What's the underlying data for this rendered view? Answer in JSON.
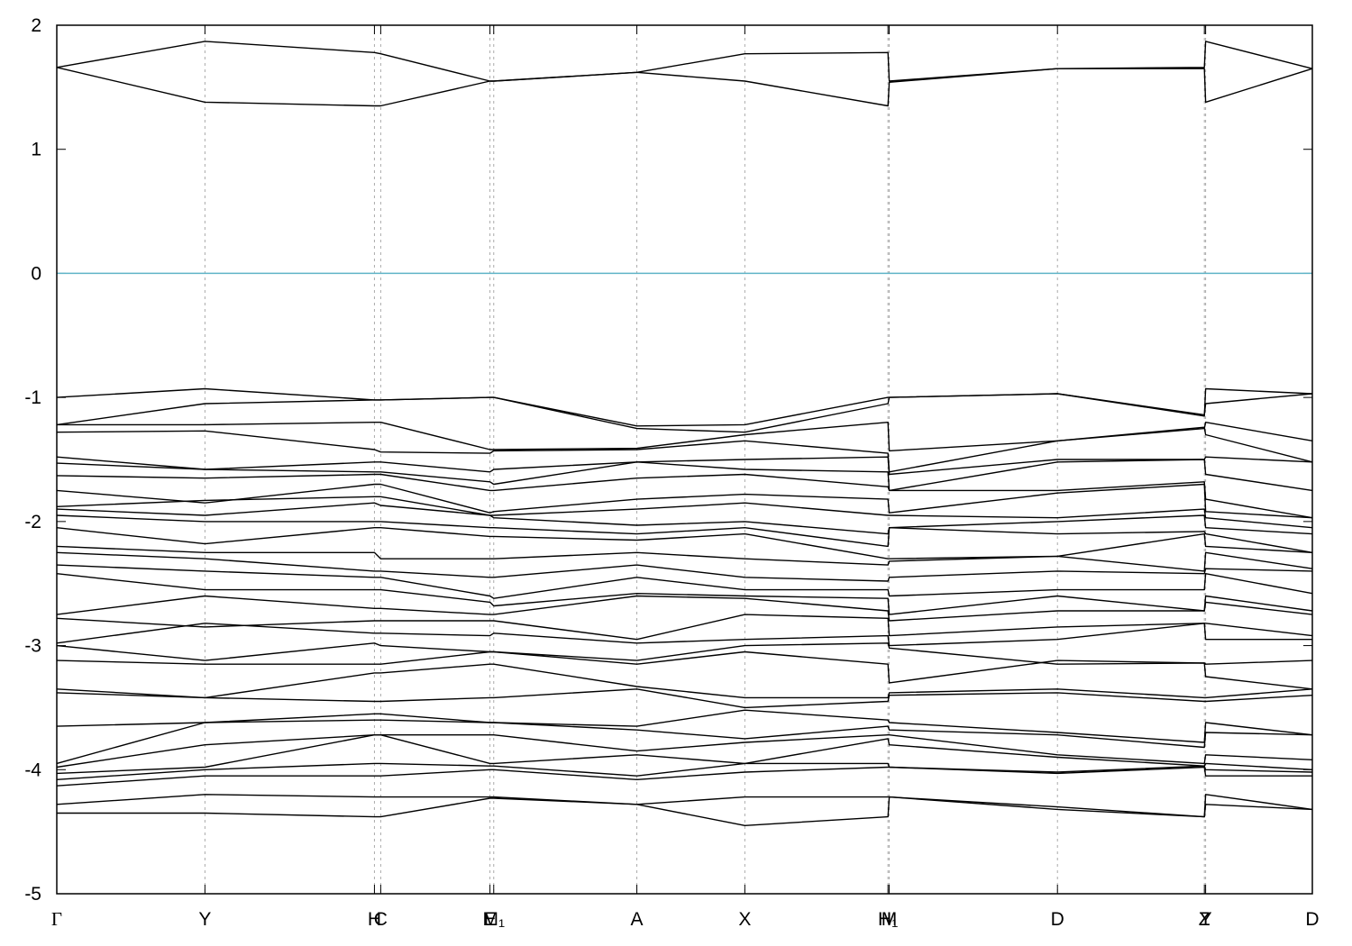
{
  "chart_data": {
    "type": "line",
    "color": "#000000",
    "reference_line": {
      "y": 0,
      "color": "#5fb4c8"
    },
    "xgrid": true,
    "xlim": [
      0,
      1
    ],
    "ylim": [
      -5,
      2
    ],
    "yticks": [
      -5,
      -4,
      -3,
      -2,
      -1,
      0,
      1,
      2
    ],
    "xticks": [
      {
        "value": 0,
        "label": "Γ"
      },
      {
        "value": 0.118,
        "label": "Y"
      },
      {
        "value": 0.253,
        "label": "H"
      },
      {
        "value": 0.258,
        "label": "C"
      },
      {
        "value": 0.345,
        "label": "E"
      },
      {
        "value": 0.348,
        "label": "M₁"
      },
      {
        "value": 0.462,
        "label": "A"
      },
      {
        "value": 0.548,
        "label": "X"
      },
      {
        "value": 0.662,
        "label": "H₁"
      },
      {
        "value": 0.663,
        "label": "M"
      },
      {
        "value": 0.797,
        "label": "D"
      },
      {
        "value": 0.914,
        "label": "Z"
      },
      {
        "value": 0.915,
        "label": "Y"
      },
      {
        "value": 1,
        "label": "D"
      }
    ],
    "x": [
      0,
      0.118,
      0.253,
      0.258,
      0.345,
      0.348,
      0.462,
      0.548,
      0.662,
      0.663,
      0.797,
      0.914,
      0.915,
      1
    ],
    "series": [
      {
        "values": [
          1.66,
          1.87,
          1.78,
          1.77,
          1.55,
          1.55,
          1.62,
          1.77,
          1.78,
          1.55,
          1.65,
          1.66,
          1.87,
          1.65
        ]
      },
      {
        "values": [
          1.66,
          1.38,
          1.35,
          1.35,
          1.55,
          1.55,
          1.62,
          1.55,
          1.35,
          1.54,
          1.65,
          1.65,
          1.38,
          1.65
        ]
      },
      {
        "values": [
          -1.0,
          -0.93,
          -1.02,
          -1.02,
          -1.0,
          -1.0,
          -1.23,
          -1.22,
          -1.0,
          -1.0,
          -0.97,
          -1.15,
          -0.93,
          -0.97
        ]
      },
      {
        "values": [
          -1.22,
          -1.05,
          -1.02,
          -1.02,
          -1.0,
          -1.0,
          -1.25,
          -1.28,
          -1.05,
          -1.0,
          -0.97,
          -1.14,
          -1.05,
          -0.97
        ]
      },
      {
        "values": [
          -1.22,
          -1.22,
          -1.2,
          -1.2,
          -1.42,
          -1.42,
          -1.41,
          -1.3,
          -1.2,
          -1.43,
          -1.35,
          -1.25,
          -1.2,
          -1.35
        ]
      },
      {
        "values": [
          -1.28,
          -1.27,
          -1.42,
          -1.44,
          -1.45,
          -1.43,
          -1.42,
          -1.35,
          -1.45,
          -1.6,
          -1.35,
          -1.24,
          -1.3,
          -1.52
        ]
      },
      {
        "values": [
          -1.48,
          -1.58,
          -1.52,
          -1.52,
          -1.6,
          -1.58,
          -1.52,
          -1.5,
          -1.48,
          -1.62,
          -1.5,
          -1.5,
          -1.48,
          -1.52
        ]
      },
      {
        "values": [
          -1.53,
          -1.58,
          -1.6,
          -1.6,
          -1.68,
          -1.7,
          -1.52,
          -1.58,
          -1.6,
          -1.75,
          -1.52,
          -1.5,
          -1.62,
          -1.75
        ]
      },
      {
        "values": [
          -1.63,
          -1.65,
          -1.62,
          -1.62,
          -1.75,
          -1.75,
          -1.65,
          -1.62,
          -1.72,
          -1.75,
          -1.75,
          -1.68,
          -1.82,
          -1.97
        ]
      },
      {
        "values": [
          -1.75,
          -1.85,
          -1.7,
          -1.7,
          -1.93,
          -1.92,
          -1.82,
          -1.78,
          -1.82,
          -1.93,
          -1.77,
          -1.7,
          -1.92,
          -1.97
        ]
      },
      {
        "values": [
          -1.88,
          -1.83,
          -1.8,
          -1.8,
          -1.95,
          -1.95,
          -1.9,
          -1.85,
          -1.95,
          -1.95,
          -1.97,
          -1.9,
          -1.97,
          -2.05
        ]
      },
      {
        "values": [
          -1.9,
          -1.95,
          -1.85,
          -1.87,
          -1.95,
          -1.97,
          -2.03,
          -2.0,
          -2.1,
          -2.05,
          -2.0,
          -1.95,
          -2.05,
          -2.1
        ]
      },
      {
        "values": [
          -1.95,
          -2.0,
          -2.0,
          -2.0,
          -2.05,
          -2.05,
          -2.1,
          -2.05,
          -2.2,
          -2.05,
          -2.1,
          -2.08,
          -2.1,
          -2.25
        ]
      },
      {
        "values": [
          -2.05,
          -2.18,
          -2.05,
          -2.05,
          -2.12,
          -2.12,
          -2.15,
          -2.1,
          -2.3,
          -2.3,
          -2.28,
          -2.1,
          -2.2,
          -2.25
        ]
      },
      {
        "values": [
          -2.2,
          -2.25,
          -2.25,
          -2.3,
          -2.3,
          -2.3,
          -2.25,
          -2.3,
          -2.35,
          -2.32,
          -2.28,
          -2.4,
          -2.25,
          -2.38
        ]
      },
      {
        "values": [
          -2.25,
          -2.3,
          -2.4,
          -2.4,
          -2.45,
          -2.45,
          -2.35,
          -2.45,
          -2.48,
          -2.45,
          -2.4,
          -2.42,
          -2.38,
          -2.4
        ]
      },
      {
        "values": [
          -2.35,
          -2.4,
          -2.45,
          -2.45,
          -2.6,
          -2.62,
          -2.45,
          -2.55,
          -2.55,
          -2.6,
          -2.55,
          -2.55,
          -2.42,
          -2.58
        ]
      },
      {
        "values": [
          -2.42,
          -2.55,
          -2.55,
          -2.55,
          -2.65,
          -2.68,
          -2.58,
          -2.6,
          -2.62,
          -2.75,
          -2.6,
          -2.72,
          -2.6,
          -2.72
        ]
      },
      {
        "values": [
          -2.75,
          -2.6,
          -2.7,
          -2.7,
          -2.75,
          -2.75,
          -2.6,
          -2.62,
          -2.72,
          -2.8,
          -2.72,
          -2.72,
          -2.65,
          -2.75
        ]
      },
      {
        "values": [
          -2.78,
          -2.85,
          -2.8,
          -2.8,
          -2.8,
          -2.8,
          -2.95,
          -2.75,
          -2.78,
          -2.92,
          -2.85,
          -2.82,
          -2.82,
          -2.92
        ]
      },
      {
        "values": [
          -2.98,
          -2.82,
          -2.9,
          -2.9,
          -2.92,
          -2.9,
          -2.98,
          -2.95,
          -2.92,
          -3.0,
          -2.95,
          -2.82,
          -2.95,
          -2.95
        ]
      },
      {
        "values": [
          -3.0,
          -3.12,
          -2.98,
          -3.0,
          -3.05,
          -3.05,
          -3.12,
          -3.0,
          -2.98,
          -3.02,
          -3.15,
          -3.14,
          -3.15,
          -3.12
        ]
      },
      {
        "values": [
          -3.12,
          -3.15,
          -3.15,
          -3.15,
          -3.05,
          -3.05,
          -3.15,
          -3.05,
          -3.15,
          -3.3,
          -3.12,
          -3.14,
          -3.25,
          -3.35
        ]
      },
      {
        "values": [
          -3.35,
          -3.42,
          -3.22,
          -3.22,
          -3.15,
          -3.15,
          -3.33,
          -3.42,
          -3.42,
          -3.38,
          -3.35,
          -3.42,
          -3.42,
          -3.35
        ]
      },
      {
        "values": [
          -3.38,
          -3.42,
          -3.45,
          -3.45,
          -3.42,
          -3.42,
          -3.35,
          -3.5,
          -3.45,
          -3.4,
          -3.38,
          -3.45,
          -3.45,
          -3.4
        ]
      },
      {
        "values": [
          -3.65,
          -3.62,
          -3.6,
          -3.6,
          -3.62,
          -3.62,
          -3.65,
          -3.52,
          -3.6,
          -3.62,
          -3.7,
          -3.78,
          -3.62,
          -3.72
        ]
      },
      {
        "values": [
          -3.95,
          -3.62,
          -3.55,
          -3.55,
          -3.62,
          -3.62,
          -3.68,
          -3.75,
          -3.65,
          -3.68,
          -3.72,
          -3.82,
          -3.7,
          -3.72
        ]
      },
      {
        "values": [
          -3.98,
          -3.8,
          -3.72,
          -3.72,
          -3.72,
          -3.72,
          -3.85,
          -3.78,
          -3.72,
          -3.72,
          -3.88,
          -3.95,
          -3.88,
          -3.92
        ]
      },
      {
        "values": [
          -4.03,
          -3.98,
          -3.72,
          -3.72,
          -3.95,
          -3.95,
          -3.88,
          -3.95,
          -3.75,
          -3.8,
          -3.9,
          -3.97,
          -3.95,
          -4.0
        ]
      },
      {
        "values": [
          -4.08,
          -4.0,
          -3.95,
          -3.95,
          -3.97,
          -3.97,
          -4.05,
          -3.95,
          -3.95,
          -3.98,
          -4.02,
          -3.97,
          -4.0,
          -4.02
        ]
      },
      {
        "values": [
          -4.13,
          -4.05,
          -4.05,
          -4.05,
          -4.0,
          -4.0,
          -4.08,
          -4.02,
          -3.98,
          -3.98,
          -4.03,
          -3.98,
          -4.05,
          -4.05
        ]
      },
      {
        "values": [
          -4.28,
          -4.2,
          -4.22,
          -4.22,
          -4.22,
          -4.22,
          -4.28,
          -4.22,
          -4.22,
          -4.22,
          -4.3,
          -4.38,
          -4.2,
          -4.32
        ]
      },
      {
        "values": [
          -4.35,
          -4.35,
          -4.38,
          -4.38,
          -4.23,
          -4.23,
          -4.28,
          -4.45,
          -4.38,
          -4.22,
          -4.32,
          -4.38,
          -4.28,
          -4.32
        ]
      }
    ]
  }
}
